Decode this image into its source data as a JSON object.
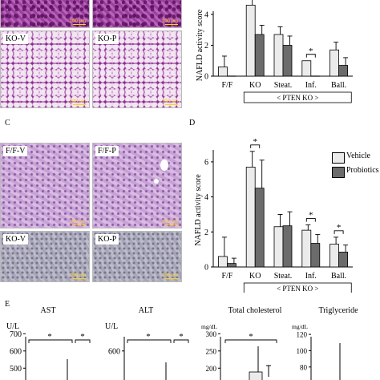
{
  "panels": {
    "a": {
      "images": [
        {
          "label": "",
          "style": "he-dense",
          "scale": "100 μm"
        },
        {
          "label": "",
          "style": "he-dense",
          "scale": "100 μm"
        },
        {
          "label": "KO-V",
          "style": "he-foamy",
          "scale": "100 μm"
        },
        {
          "label": "KO-P",
          "style": "he-foamy",
          "scale": "100 μm"
        }
      ]
    },
    "c": {
      "letter": "C",
      "images": [
        {
          "label": "F/F-V",
          "style": "he-light",
          "scale": "100 μm"
        },
        {
          "label": "F/F-P",
          "style": "he-light",
          "scale": "100 μm"
        },
        {
          "label": "KO-V",
          "style": "he-grey",
          "scale": "100 μm"
        },
        {
          "label": "KO-P",
          "style": "he-grey",
          "scale": "100 μm"
        }
      ]
    },
    "d_letter": "D",
    "e_letter": "E"
  },
  "legend": {
    "vehicle": "Vehicle",
    "probiotics": "Probiotics"
  },
  "colors": {
    "vehicle": "#ebebeb",
    "probiotics": "#6b6b6b",
    "scale_bar": "#ffd21f"
  },
  "chart_data": [
    {
      "id": "B",
      "type": "bar",
      "ylabel": "NAFLD activity score",
      "categories": [
        "F/F",
        "KO",
        "Steat.",
        "Inf.",
        "Ball."
      ],
      "group_label": "<   PTEN KO   >",
      "ylim": [
        0,
        4
      ],
      "yticks": [
        "0",
        "2",
        "4"
      ],
      "series": [
        {
          "name": "Vehicle",
          "values": [
            0.6,
            4.6,
            2.7,
            1.0,
            1.7
          ],
          "errors": [
            0.7,
            0.9,
            0.5,
            0.0,
            0.5
          ]
        },
        {
          "name": "Probiotics",
          "values": [
            0.0,
            2.7,
            2.0,
            0.0,
            0.7
          ],
          "errors": [
            0.0,
            0.6,
            0.6,
            0.0,
            0.5
          ]
        }
      ],
      "significance": [
        {
          "category": "Inf.",
          "label": "*"
        }
      ]
    },
    {
      "id": "D",
      "type": "bar",
      "ylabel": "NAFLD activity score",
      "categories": [
        "F/F",
        "KO",
        "Steat.",
        "Inf.",
        "Ball."
      ],
      "group_label": "<   PTEN KO   >",
      "ylim": [
        0,
        6.5
      ],
      "yticks": [
        "0",
        "2",
        "4",
        "6"
      ],
      "series": [
        {
          "name": "Vehicle",
          "values": [
            0.6,
            5.7,
            2.3,
            2.1,
            1.3
          ],
          "errors": [
            1.1,
            0.9,
            0.7,
            0.3,
            0.4
          ]
        },
        {
          "name": "Probiotics",
          "values": [
            0.2,
            4.5,
            2.35,
            1.35,
            0.85
          ],
          "errors": [
            0.3,
            1.6,
            0.8,
            0.5,
            0.4
          ]
        }
      ],
      "significance": [
        {
          "category": "KO",
          "label": "*"
        },
        {
          "category": "Inf.",
          "label": "*"
        },
        {
          "category": "Ball.",
          "label": "*"
        }
      ]
    },
    {
      "id": "E1",
      "type": "bar",
      "title": "AST",
      "unit": "U/L",
      "yticks": [
        "500",
        "600",
        "700"
      ],
      "ylim": [
        450,
        720
      ],
      "significance": [
        "*",
        "*"
      ]
    },
    {
      "id": "E2",
      "type": "bar",
      "title": "ALT",
      "unit": "U/L",
      "yticks": [
        "600"
      ],
      "ylim": [
        450,
        720
      ],
      "significance": [
        "*",
        "*"
      ]
    },
    {
      "id": "E3",
      "type": "bar",
      "title": "Total cholesterol",
      "unit": "mg/dL",
      "yticks": [
        "200",
        "250",
        "300"
      ],
      "ylim": [
        175,
        310
      ],
      "significance": [
        "*"
      ]
    },
    {
      "id": "E4",
      "type": "bar",
      "title": "Triglyceride",
      "unit": "mg/dL",
      "yticks": [
        "80",
        "100",
        "120"
      ],
      "ylim": [
        68,
        125
      ],
      "significance": []
    }
  ]
}
